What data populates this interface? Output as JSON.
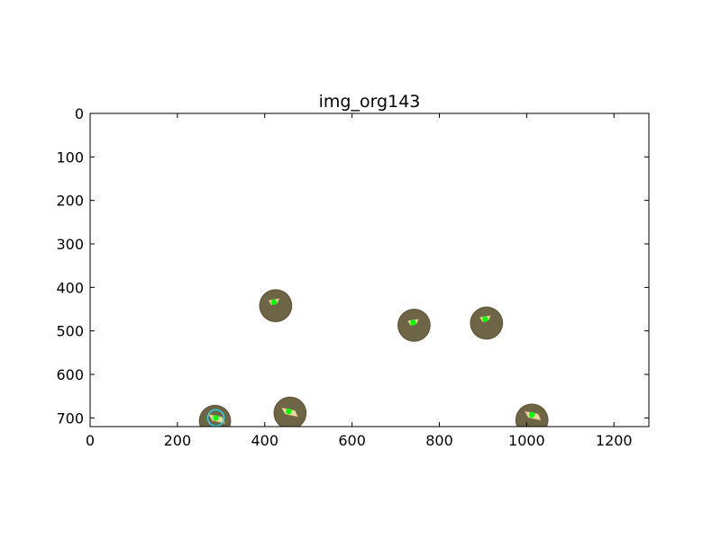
{
  "chart_data": {
    "type": "scatter",
    "title": "img_org143",
    "xlabel": "",
    "ylabel": "",
    "xlim": [
      0,
      1280
    ],
    "ylim": [
      720,
      0
    ],
    "y_inverted": true,
    "x_ticks": [
      0,
      200,
      400,
      600,
      800,
      1000,
      1200
    ],
    "x_tick_labels": [
      "0",
      "200",
      "400",
      "600",
      "800",
      "1000",
      "1200"
    ],
    "y_ticks": [
      0,
      100,
      200,
      300,
      400,
      500,
      600,
      700
    ],
    "y_tick_labels": [
      "0",
      "100",
      "200",
      "300",
      "400",
      "500",
      "600",
      "700"
    ],
    "grid": false,
    "legend": "none",
    "colors": {
      "disc": "#6e6446",
      "disc_dark": "#5a5236",
      "marker": "#00ff00",
      "highlight_circle": "#26d7e8",
      "blob": "#e9d7a4"
    },
    "series": [
      {
        "values": [
          {
            "x": 425,
            "y": 442,
            "r": 38,
            "marker_dx": -4,
            "marker_dy": -8,
            "highlight": false,
            "blob_shape": "small"
          },
          {
            "x": 742,
            "y": 487,
            "r": 38,
            "marker_dx": -2,
            "marker_dy": -6,
            "highlight": false,
            "blob_shape": "small"
          },
          {
            "x": 908,
            "y": 482,
            "r": 38,
            "marker_dx": -3,
            "marker_dy": -9,
            "highlight": false,
            "blob_shape": "small"
          },
          {
            "x": 286,
            "y": 707,
            "r": 37,
            "marker_dx": 2,
            "marker_dy": -7,
            "highlight": true,
            "blob_shape": "wide"
          },
          {
            "x": 458,
            "y": 689,
            "r": 38,
            "marker_dx": -3,
            "marker_dy": -4,
            "highlight": false,
            "blob_shape": "wide"
          },
          {
            "x": 1012,
            "y": 705,
            "r": 38,
            "marker_dx": 0,
            "marker_dy": -12,
            "highlight": false,
            "blob_shape": "wide"
          }
        ]
      }
    ]
  }
}
